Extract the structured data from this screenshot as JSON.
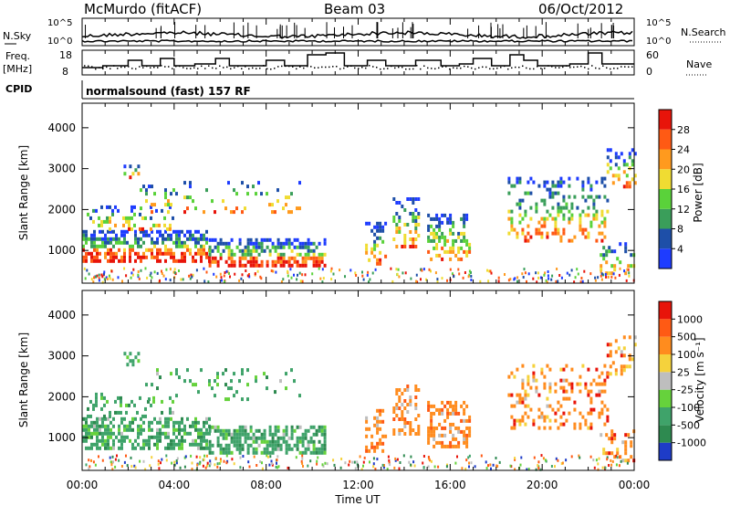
{
  "header": {
    "station": "McMurdo (fitACF)",
    "beam": "Beam 03",
    "date": "06/Oct/2012"
  },
  "noise_panel": {
    "left_label": "N.Sky",
    "right_label": "N.Search",
    "left_ticks": [
      "10^5",
      "10^0"
    ],
    "right_ticks": [
      "10^5",
      "10^0"
    ]
  },
  "freq_panel": {
    "left_label_line1": "Freq.",
    "left_label_line2": "[MHz]",
    "left_ticks": [
      "18",
      "8"
    ],
    "right_ticks": [
      "60",
      "0"
    ],
    "right_label": "Nave"
  },
  "cpid": {
    "label": "CPID",
    "value": "normalsound (fast) 157 RF"
  },
  "time_axis": {
    "label": "Time UT",
    "ticks": [
      "00:00",
      "04:00",
      "08:00",
      "12:00",
      "16:00",
      "20:00",
      "00:00"
    ]
  },
  "chart_data": [
    {
      "type": "heatmap",
      "title": "",
      "ylabel": "Slant Range [km]",
      "xlabel": "",
      "yticks": [
        "1000",
        "2000",
        "3000",
        "4000"
      ],
      "ylim": [
        200,
        4600
      ],
      "xlim_hours": [
        0,
        24
      ],
      "colorbar": {
        "label": "Power [dB]",
        "ticks": [
          "4",
          "8",
          "12",
          "16",
          "20",
          "24",
          "28"
        ],
        "colors": [
          "#1e3cff",
          "#1e4fa8",
          "#3a9e5a",
          "#5ad23a",
          "#f0dc32",
          "#ff9a1e",
          "#ff5a14",
          "#e8140a"
        ],
        "range": [
          0,
          30
        ]
      }
    },
    {
      "type": "heatmap",
      "title": "",
      "ylabel": "Slant Range [km]",
      "xlabel": "Time UT",
      "yticks": [
        "1000",
        "2000",
        "3000",
        "4000"
      ],
      "ylim": [
        200,
        4600
      ],
      "xlim_hours": [
        0,
        24
      ],
      "colorbar": {
        "label": "Velocity [m s⁻¹]",
        "ticks": [
          "1000",
          "500",
          "100",
          "25",
          "-25",
          "-100",
          "-500",
          "-1000"
        ],
        "colors": [
          "#1e3cc8",
          "#2e8a50",
          "#3fa36a",
          "#66d23c",
          "#bebebe",
          "#f5d23c",
          "#ff8c1e",
          "#ff5a14",
          "#e8140a"
        ]
      }
    }
  ]
}
